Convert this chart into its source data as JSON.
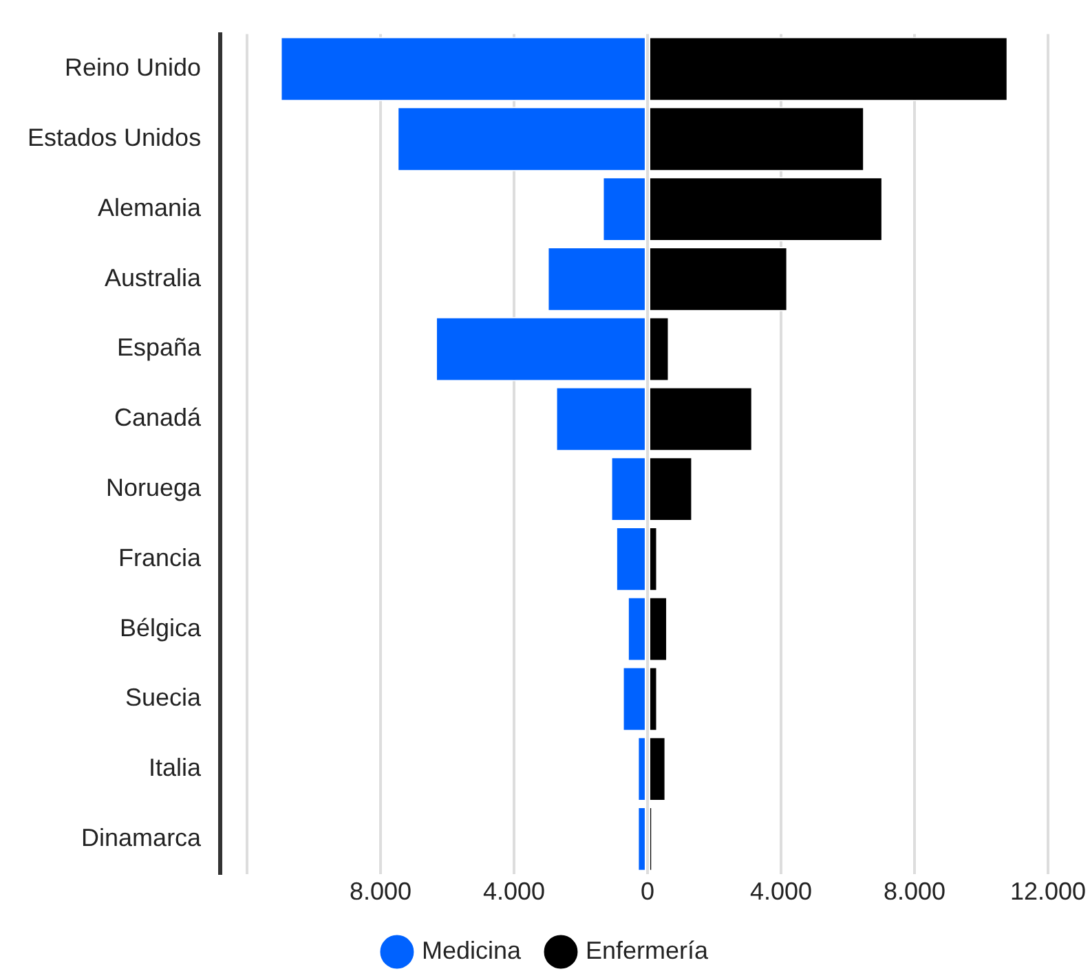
{
  "chart_data": {
    "type": "bar",
    "orientation": "horizontal",
    "stacked": true,
    "categories": [
      "Reino Unido",
      "Estados Unidos",
      "Alemania",
      "Australia",
      "España",
      "Canadá",
      "Noruega",
      "Francia",
      "Bélgica",
      "Suecia",
      "Italia",
      "Dinamarca"
    ],
    "series": [
      {
        "name": "Medicina",
        "color": "#0062ff",
        "values": [
          -11000,
          -7500,
          -1350,
          -3000,
          -6350,
          -2750,
          -1100,
          -950,
          -600,
          -750,
          -300,
          -300
        ]
      },
      {
        "name": "Enfermería",
        "color": "#000000",
        "values": [
          10800,
          6500,
          7050,
          4200,
          650,
          3150,
          1350,
          300,
          600,
          300,
          550,
          150
        ]
      }
    ],
    "xlim": [
      -12800,
      12000
    ],
    "xticks": [
      {
        "value": -12000,
        "label": null
      },
      {
        "value": -8000,
        "label": "8.000"
      },
      {
        "value": -4000,
        "label": "4.000"
      },
      0,
      {
        "value": 4000,
        "label": "4.000"
      },
      {
        "value": 8000,
        "label": "8.000"
      },
      {
        "value": 12000,
        "label": "12.000"
      }
    ],
    "grid": "x",
    "legend": "bottom"
  }
}
